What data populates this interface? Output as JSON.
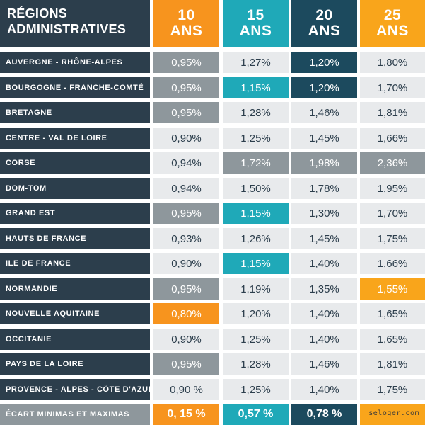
{
  "chart_data": {
    "type": "table",
    "columns": [
      "RÉGIONS ADMINISTRATIVES",
      "10 ANS",
      "15 ANS",
      "20 ANS",
      "25 ANS"
    ],
    "header_title_lines": [
      "RÉGIONS",
      "ADMINISTRATIVES"
    ],
    "durations": [
      {
        "number": "10",
        "unit": "ANS"
      },
      {
        "number": "15",
        "unit": "ANS"
      },
      {
        "number": "20",
        "unit": "ANS"
      },
      {
        "number": "25",
        "unit": "ANS"
      }
    ],
    "rows": [
      {
        "region": "AUVERGNE - RHÔNE-ALPES",
        "values": [
          "0,95%",
          "1,27%",
          "1,20%",
          "1,80%"
        ]
      },
      {
        "region": "BOURGOGNE - FRANCHE-COMTÉ",
        "values": [
          "0,95%",
          "1,15%",
          "1,20%",
          "1,70%"
        ]
      },
      {
        "region": "BRETAGNE",
        "values": [
          "0,95%",
          "1,28%",
          "1,46%",
          "1,81%"
        ]
      },
      {
        "region": "CENTRE - VAL DE LOIRE",
        "values": [
          "0,90%",
          "1,25%",
          "1,45%",
          "1,66%"
        ]
      },
      {
        "region": "CORSE",
        "values": [
          "0,94%",
          "1,72%",
          "1,98%",
          "2,36%"
        ]
      },
      {
        "region": "DOM-TOM",
        "values": [
          "0,94%",
          "1,50%",
          "1,78%",
          "1,95%"
        ]
      },
      {
        "region": "GRAND EST",
        "values": [
          "0,95%",
          "1,15%",
          "1,30%",
          "1,70%"
        ]
      },
      {
        "region": "HAUTS DE FRANCE",
        "values": [
          "0,93%",
          "1,26%",
          "1,45%",
          "1,75%"
        ]
      },
      {
        "region": "ILE DE FRANCE",
        "values": [
          "0,90%",
          "1,15%",
          "1,40%",
          "1,66%"
        ]
      },
      {
        "region": "NORMANDIE",
        "values": [
          "0,95%",
          "1,19%",
          "1,35%",
          "1,55%"
        ]
      },
      {
        "region": "NOUVELLE  AQUITAINE",
        "values": [
          "0,80%",
          "1,20%",
          "1,40%",
          "1,65%"
        ]
      },
      {
        "region": "OCCITANIE",
        "values": [
          "0,90%",
          "1,25%",
          "1,40%",
          "1,65%"
        ]
      },
      {
        "region": "PAYS DE LA LOIRE",
        "values": [
          "0,95%",
          "1,28%",
          "1,46%",
          "1,81%"
        ]
      },
      {
        "region": "PROVENCE - ALPES - CÔTE D'AZUR",
        "values": [
          "0,90 %",
          "1,25%",
          "1,40%",
          "1,75%"
        ]
      }
    ],
    "summary_row": {
      "label": "ÉCART MINIMAS ET MAXIMAS",
      "values": [
        "0, 15 %",
        "0,57 %",
        "0,78 %",
        ""
      ]
    },
    "highlights": [
      {
        "row": 0,
        "col": 0,
        "style": "max"
      },
      {
        "row": 0,
        "col": 2,
        "style": "min"
      },
      {
        "row": 1,
        "col": 0,
        "style": "max"
      },
      {
        "row": 1,
        "col": 1,
        "style": "min"
      },
      {
        "row": 1,
        "col": 2,
        "style": "min"
      },
      {
        "row": 2,
        "col": 0,
        "style": "max"
      },
      {
        "row": 4,
        "col": 1,
        "style": "max"
      },
      {
        "row": 4,
        "col": 2,
        "style": "max"
      },
      {
        "row": 4,
        "col": 3,
        "style": "max"
      },
      {
        "row": 6,
        "col": 0,
        "style": "max"
      },
      {
        "row": 6,
        "col": 1,
        "style": "min"
      },
      {
        "row": 8,
        "col": 1,
        "style": "min"
      },
      {
        "row": 9,
        "col": 0,
        "style": "max"
      },
      {
        "row": 9,
        "col": 3,
        "style": "min"
      },
      {
        "row": 10,
        "col": 0,
        "style": "min"
      },
      {
        "row": 12,
        "col": 0,
        "style": "max"
      }
    ]
  },
  "colors": {
    "region_bg": "#2c3e4c",
    "cell_bg": "#e8eaec",
    "max_bg": "#8e979c",
    "summary_label_bg": "#8e979c",
    "col_10": "#f7941e",
    "col_15": "#1fa9b8",
    "col_20": "#1c4a5e",
    "col_25": "#f9a51b"
  },
  "watermark": "seloger.com"
}
